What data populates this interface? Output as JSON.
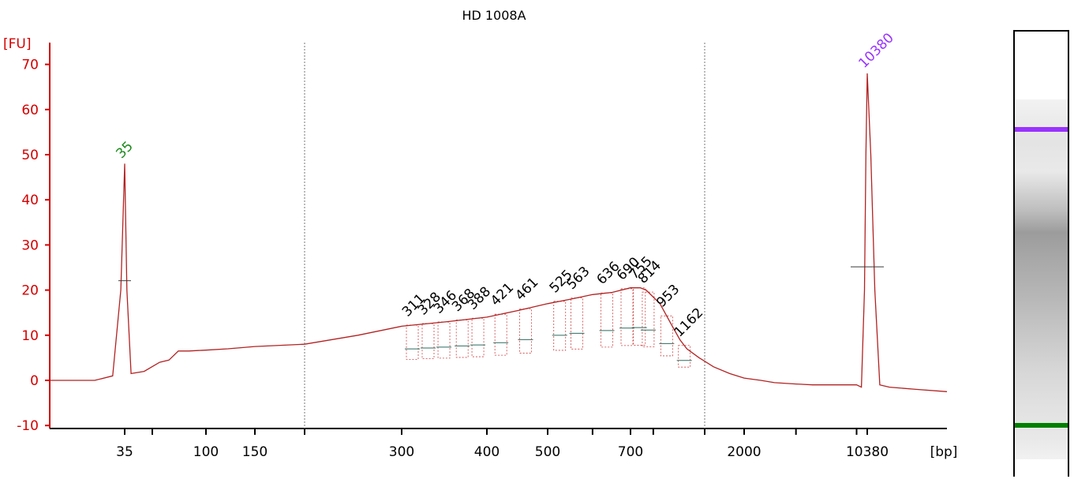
{
  "chart_data": {
    "type": "line",
    "title": "HD 1008A",
    "ylabel": "[FU]",
    "xlabel": "[bp]",
    "ylim": [
      -10,
      72
    ],
    "yticks": [
      -10,
      0,
      10,
      20,
      30,
      40,
      50,
      60,
      70
    ],
    "xtick_labels": [
      "35",
      "100",
      "150",
      "300",
      "400",
      "500",
      "700",
      "2000",
      "10380"
    ],
    "region_markers_bp": [
      200,
      1500
    ],
    "marker_peaks": [
      {
        "label": "35",
        "bp": 35,
        "height": 48,
        "color": "#1a8a1a"
      },
      {
        "label": "10380",
        "bp": 10380,
        "height": 68,
        "color": "#9933ff"
      }
    ],
    "smear_peak_labels": [
      "311",
      "328",
      "346",
      "368",
      "388",
      "421",
      "461",
      "525",
      "563",
      "636",
      "690",
      "755",
      "814",
      "953",
      "1162"
    ],
    "trace": {
      "color": "#b22222",
      "x_bp": [
        20,
        28,
        32,
        34,
        35,
        36,
        38,
        45,
        55,
        62,
        70,
        80,
        90,
        100,
        120,
        150,
        200,
        250,
        300,
        350,
        400,
        450,
        500,
        550,
        600,
        650,
        700,
        760,
        800,
        900,
        1000,
        1100,
        1200,
        1400,
        1600,
        1800,
        2000,
        2500,
        3000,
        4000,
        5000,
        7000,
        9000,
        9600,
        10000,
        10200,
        10380,
        10550,
        10750,
        11000,
        11500,
        13000,
        15000
      ],
      "y": [
        0,
        0,
        1,
        20,
        48,
        20,
        1.5,
        2,
        4,
        4.5,
        6.5,
        6.5,
        6.6,
        6.7,
        7,
        7.5,
        8,
        10,
        12,
        13,
        14,
        15.5,
        17,
        18,
        19,
        19.5,
        20.5,
        20.5,
        20,
        17,
        12,
        9,
        7,
        5,
        3,
        1.5,
        0.5,
        0,
        -0.5,
        -0.8,
        -1,
        -1,
        -1,
        -1.5,
        20,
        50,
        68,
        50,
        20,
        -1,
        -1.5,
        -2,
        -2.5
      ]
    },
    "legend": "none",
    "grid": false
  },
  "gel": {
    "upper_marker_color": "#9933ff",
    "lower_marker_color": "#008000"
  }
}
